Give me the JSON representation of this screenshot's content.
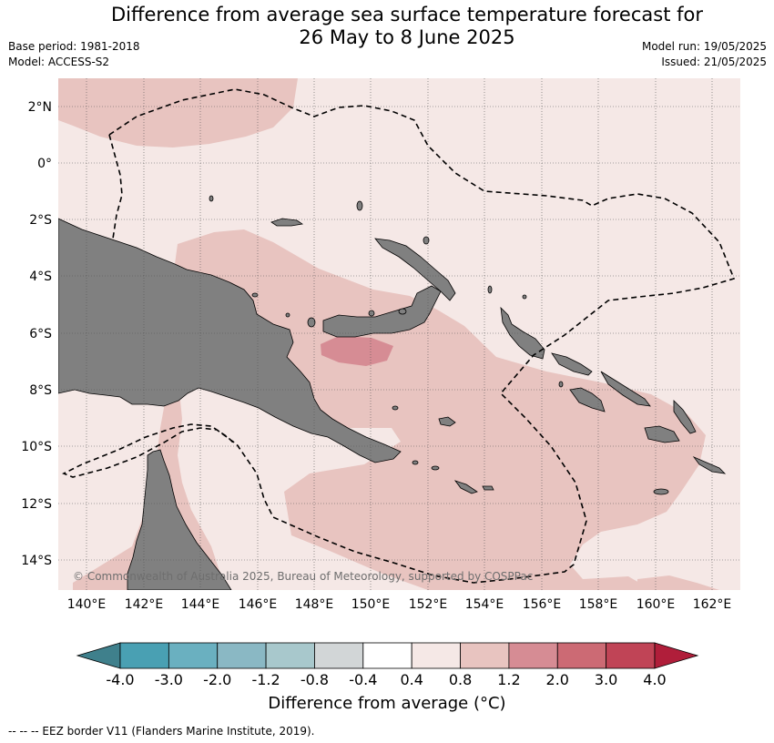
{
  "title_line1": "Difference from average sea surface temperature forecast for",
  "title_line2": "26 May to 8 June 2025",
  "base_period": "Base period: 1981-2018",
  "model": "Model: ACCESS-S2",
  "model_run": "Model run: 19/05/2025",
  "issued": "Issued: 21/05/2025",
  "lat_labels": [
    "2°N",
    "0°",
    "2°S",
    "4°S",
    "6°S",
    "8°S",
    "10°S",
    "12°S",
    "14°S"
  ],
  "lon_labels": [
    "140°E",
    "142°E",
    "144°E",
    "146°E",
    "148°E",
    "150°E",
    "152°E",
    "154°E",
    "156°E",
    "158°E",
    "160°E",
    "162°E"
  ],
  "copyright": "© Commonwealth of Australia 2025, Bureau of Meteorology, supported by COSPPac",
  "colorbar": {
    "title": "Difference from average (°C)",
    "ticks": [
      "-4.0",
      "-3.0",
      "-2.0",
      "-1.2",
      "-0.8",
      "-0.4",
      "0.4",
      "0.8",
      "1.2",
      "2.0",
      "3.0",
      "4.0"
    ],
    "colors": [
      "#3f808c",
      "#49a0b3",
      "#6ab0c0",
      "#8ab8c4",
      "#a8c8cc",
      "#d2d6d7",
      "#ffffff",
      "#f5e8e6",
      "#e8c4c0",
      "#d68c94",
      "#cc6a74",
      "#c04456",
      "#b01e3a"
    ]
  },
  "footnote": "-- -- -- EEZ border V11 (Flanders Marine Institute, 2019).",
  "colors": {
    "land": "#808080",
    "anomaly_0_4_to_0_8": "#f5e8e6",
    "anomaly_0_8_to_1_2": "#e8c4c0",
    "anomaly_1_2_to_2_0": "#d68c94"
  }
}
